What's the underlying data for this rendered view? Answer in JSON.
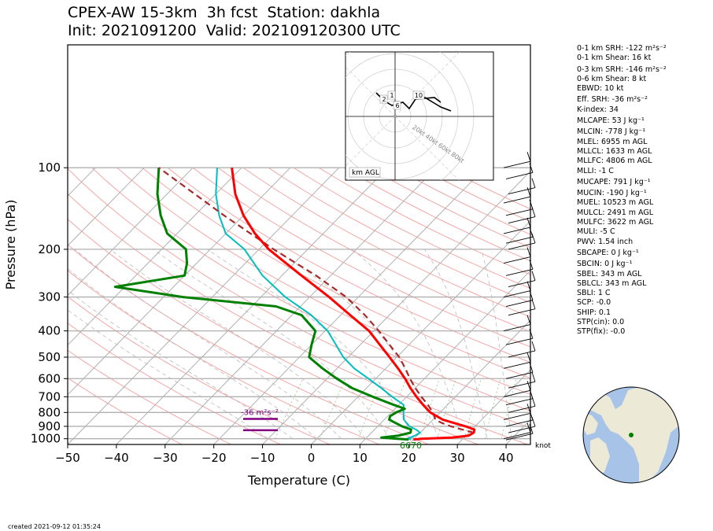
{
  "header": {
    "title_line1": "CPEX-AW 15-3km  3h fcst  Station: dakhla",
    "title_line2": "Init: 2021091200  Valid: 202109120300 UTC"
  },
  "footer": {
    "created": "created 2021-09-12 01:35:24"
  },
  "params": [
    "0-1 km SRH: -122 m²s⁻²",
    "0-1 km Shear: 16 kt",
    "0-3 km SRH: -146 m²s⁻²",
    "0-6 km Shear: 8 kt",
    "EBWD: 10 kt",
    "Eff. SRH: -36 m²s⁻²",
    "K-index: 34",
    "MLCAPE: 53 J kg⁻¹",
    "MLCIN: -778 J kg⁻¹",
    "MLEL: 6955 m AGL",
    "MLLCL: 1633 m AGL",
    "MLLFC: 4806 m AGL",
    "MLLI: -1 C",
    "MUCAPE: 791 J kg⁻¹",
    "MUCIN: -190 J kg⁻¹",
    "MUEL: 10523 m AGL",
    "MULCL: 2491 m AGL",
    "MULFC: 3622 m AGL",
    "MULI: -5 C",
    "PWV: 1.54 inch",
    "SBCAPE: 0 J kg⁻¹",
    "SBCIN: 0 J kg⁻¹",
    "SBEL: 343 m AGL",
    "SBLCL: 343 m AGL",
    "SBLI: 1 C",
    "SCP: -0.0",
    "SHIP: 0.1",
    "STP(cin): 0.0",
    "STP(fix): -0.0"
  ],
  "annotations": {
    "eff_srh_label": "-36 m²s⁻²",
    "theta_label": "6670",
    "knot_label": "knot",
    "hodo_label": "km AGL",
    "hodo_ring_labels": [
      "20kt",
      "40kt",
      "60kt",
      "80kt"
    ],
    "hodo_height_labels": [
      "2",
      "1",
      "6",
      "10"
    ]
  },
  "colors": {
    "temperature": "#ff0000",
    "dewpoint": "#008000",
    "wetbulb": "#00bfbf",
    "parcel": "#a52a2a",
    "eff_layer": "#800080"
  },
  "chart_data": {
    "type": "line",
    "subtype": "skew-T log-P",
    "xlabel": "Temperature (C)",
    "ylabel": "Pressure (hPa)",
    "xlim": [
      -50,
      45
    ],
    "ylim": [
      1050,
      100
    ],
    "y_scale": "log",
    "x_ticks": [
      -50,
      -40,
      -30,
      -20,
      -10,
      0,
      10,
      20,
      30,
      40
    ],
    "y_ticks": [
      100,
      200,
      300,
      400,
      500,
      600,
      700,
      800,
      900,
      1000
    ],
    "series": [
      {
        "key": "temperature",
        "points": [
          [
            1007,
            20
          ],
          [
            1000,
            21.5
          ],
          [
            990,
            27.5
          ],
          [
            975,
            30.5
          ],
          [
            950,
            31
          ],
          [
            925,
            30.5
          ],
          [
            900,
            28
          ],
          [
            875,
            25
          ],
          [
            850,
            22
          ],
          [
            800,
            18
          ],
          [
            750,
            15
          ],
          [
            700,
            12
          ],
          [
            650,
            9
          ],
          [
            600,
            6
          ],
          [
            550,
            2.5
          ],
          [
            500,
            -1.5
          ],
          [
            450,
            -6
          ],
          [
            400,
            -11
          ],
          [
            350,
            -18
          ],
          [
            300,
            -26
          ],
          [
            250,
            -36
          ],
          [
            200,
            -48
          ],
          [
            175,
            -54
          ],
          [
            150,
            -60
          ],
          [
            125,
            -66
          ],
          [
            100,
            -72
          ]
        ]
      },
      {
        "key": "dewpoint",
        "points": [
          [
            1007,
            19
          ],
          [
            1000,
            16.5
          ],
          [
            990,
            13
          ],
          [
            975,
            16
          ],
          [
            950,
            18
          ],
          [
            925,
            17.5
          ],
          [
            900,
            15
          ],
          [
            850,
            11
          ],
          [
            825,
            10.5
          ],
          [
            800,
            11
          ],
          [
            775,
            12
          ],
          [
            750,
            9
          ],
          [
            700,
            3
          ],
          [
            650,
            -3
          ],
          [
            600,
            -8
          ],
          [
            550,
            -13
          ],
          [
            500,
            -18
          ],
          [
            450,
            -20
          ],
          [
            400,
            -22
          ],
          [
            350,
            -28
          ],
          [
            325,
            -35
          ],
          [
            300,
            -56
          ],
          [
            275,
            -72
          ],
          [
            250,
            -60
          ],
          [
            225,
            -62
          ],
          [
            200,
            -65
          ],
          [
            175,
            -72
          ],
          [
            150,
            -77
          ],
          [
            125,
            -82
          ],
          [
            100,
            -87
          ]
        ]
      },
      {
        "key": "wetbulb",
        "points": [
          [
            1007,
            19.5
          ],
          [
            1000,
            18.5
          ],
          [
            975,
            19.5
          ],
          [
            950,
            20
          ],
          [
            925,
            18.5
          ],
          [
            900,
            16.5
          ],
          [
            850,
            14
          ],
          [
            800,
            12.5
          ],
          [
            750,
            11
          ],
          [
            700,
            7
          ],
          [
            650,
            3
          ],
          [
            600,
            -1.5
          ],
          [
            550,
            -6.5
          ],
          [
            500,
            -11
          ],
          [
            450,
            -15
          ],
          [
            400,
            -19.5
          ],
          [
            350,
            -26
          ],
          [
            300,
            -35
          ],
          [
            250,
            -44
          ],
          [
            200,
            -53
          ],
          [
            175,
            -60
          ],
          [
            150,
            -65
          ],
          [
            125,
            -70
          ],
          [
            100,
            -75
          ]
        ]
      },
      {
        "key": "parcel",
        "points": [
          [
            950,
            31
          ],
          [
            925,
            28
          ],
          [
            900,
            25
          ],
          [
            875,
            22.5
          ],
          [
            850,
            20.5
          ],
          [
            800,
            18.5
          ],
          [
            750,
            16
          ],
          [
            700,
            13
          ],
          [
            650,
            10
          ],
          [
            600,
            7
          ],
          [
            550,
            4
          ],
          [
            500,
            0.5
          ],
          [
            450,
            -4
          ],
          [
            400,
            -9
          ],
          [
            350,
            -15
          ],
          [
            300,
            -22.5
          ],
          [
            250,
            -33
          ],
          [
            200,
            -47
          ],
          [
            150,
            -64
          ],
          [
            100,
            -87
          ]
        ]
      }
    ],
    "effective_layer": {
      "top_hpa": 930,
      "bottom_hpa": 845,
      "label": "-36 m²s⁻²"
    },
    "wind_barbs_pressures": [
      100,
      110,
      125,
      135,
      150,
      160,
      175,
      190,
      200,
      225,
      250,
      275,
      300,
      325,
      350,
      400,
      450,
      500,
      550,
      600,
      650,
      700,
      750,
      800,
      850,
      900,
      950,
      1000,
      1010
    ]
  }
}
